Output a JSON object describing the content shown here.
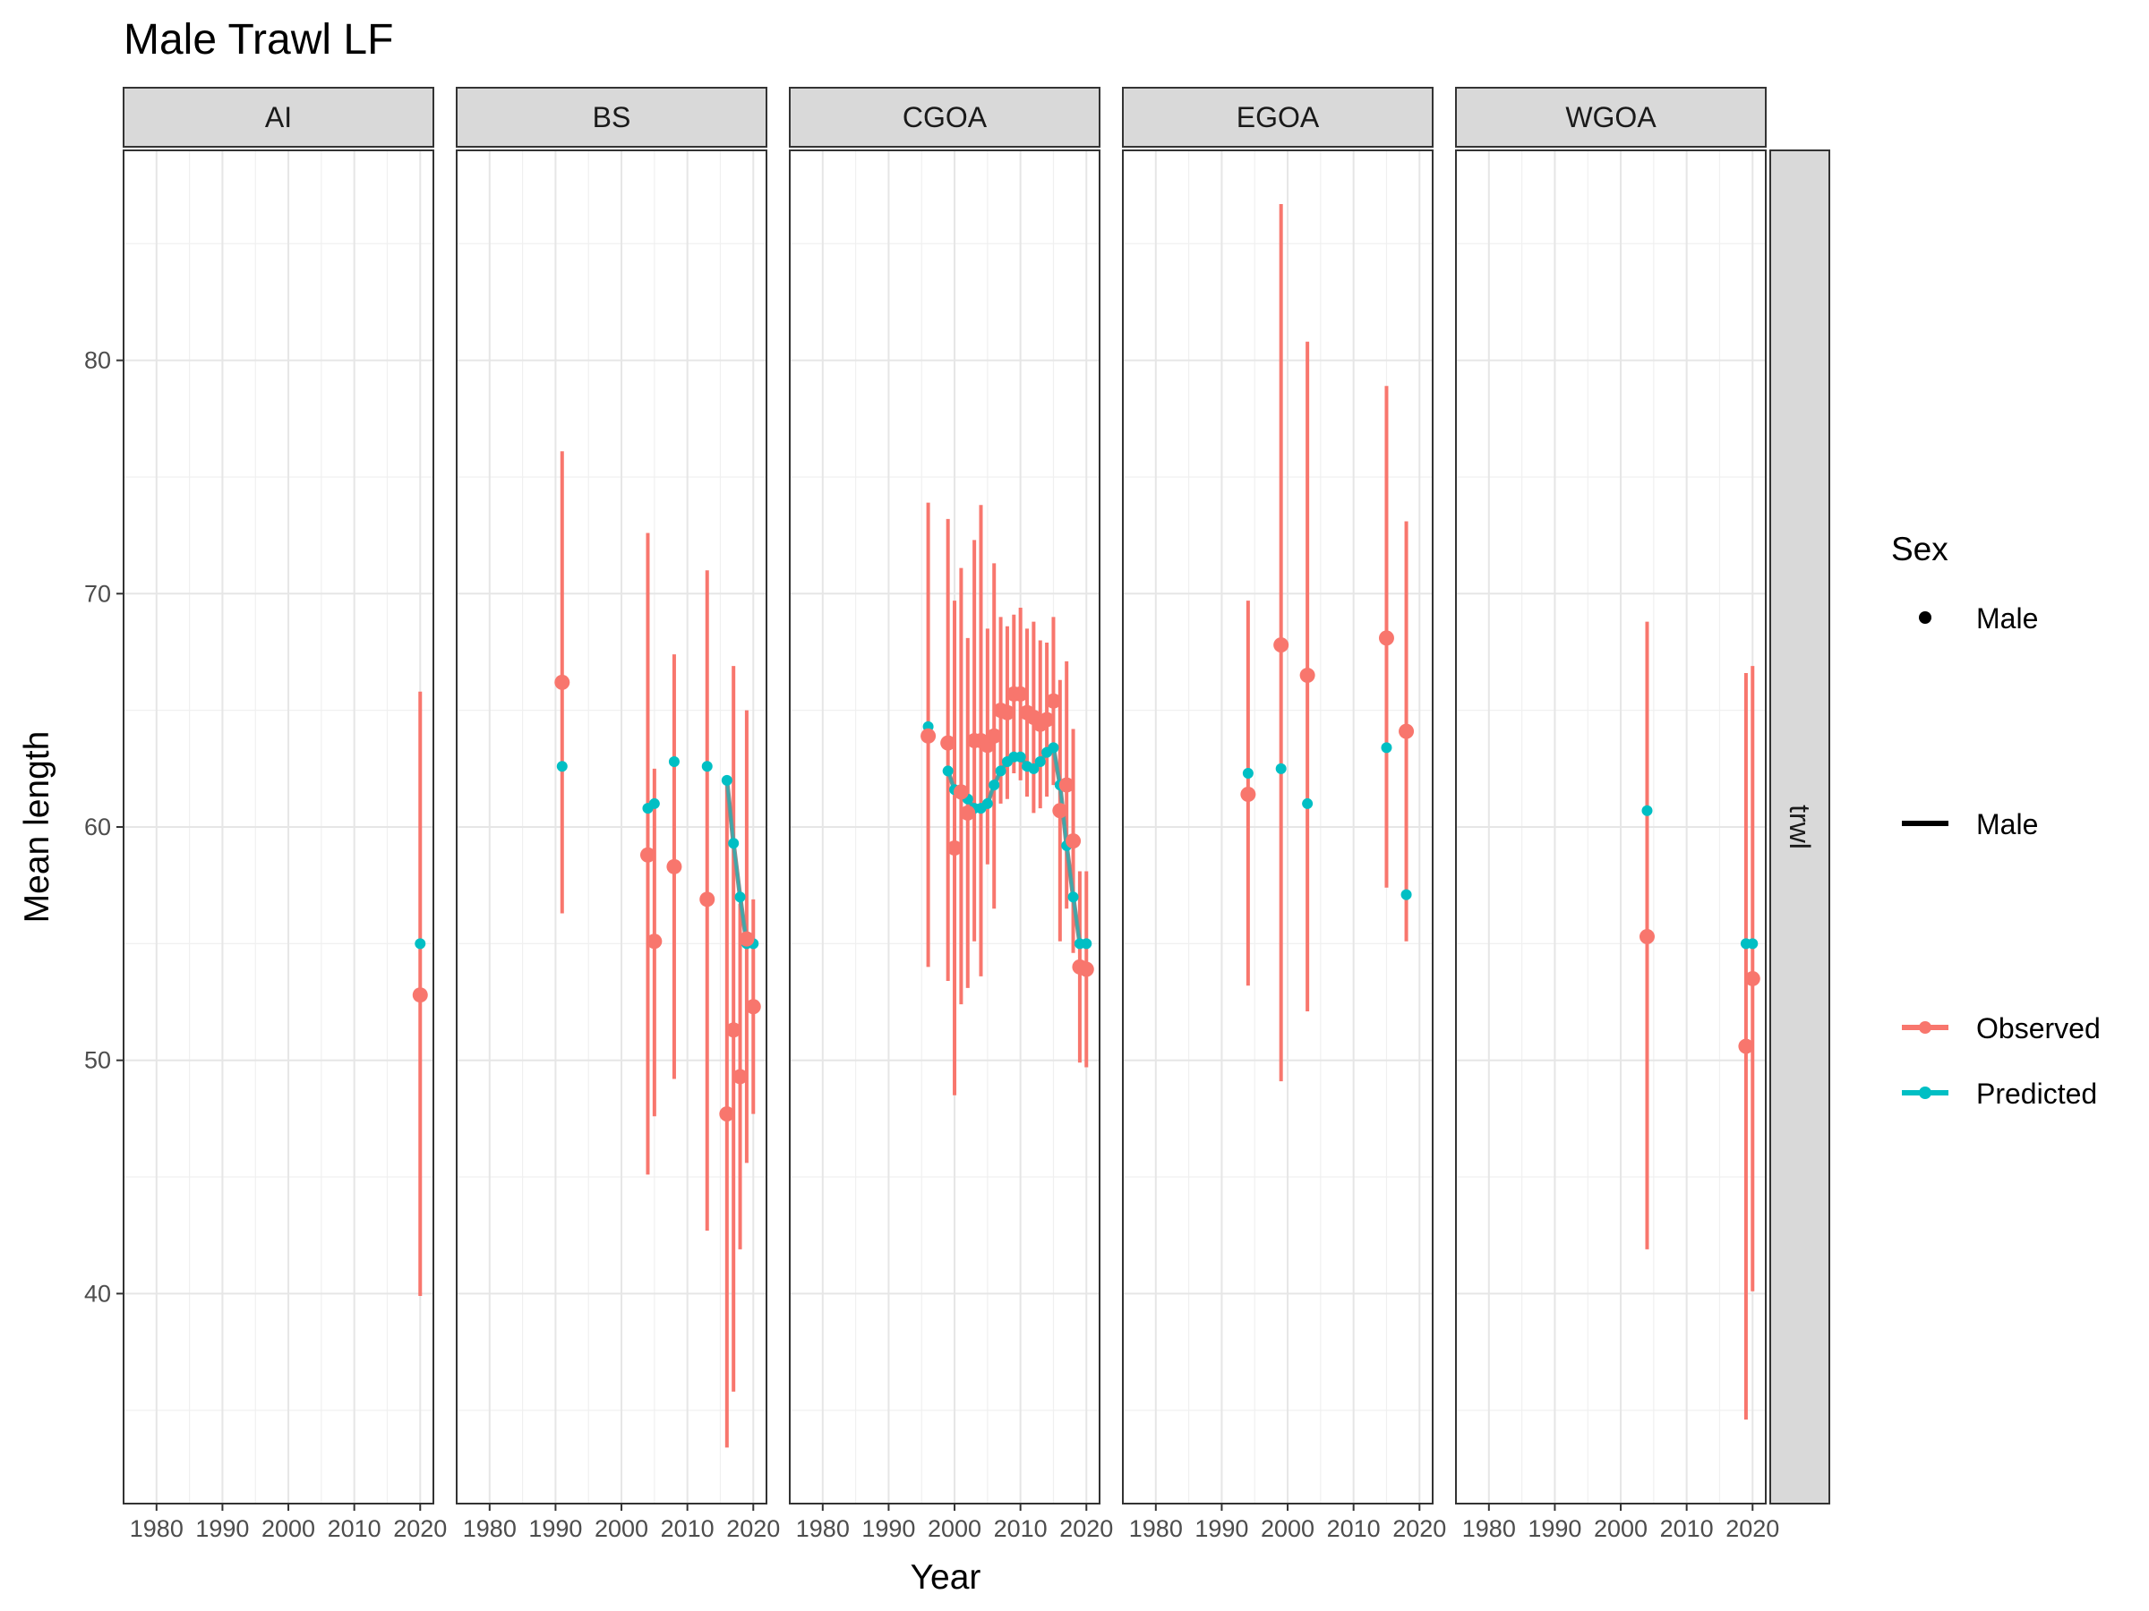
{
  "chart_data": {
    "type": "scatter",
    "title": "Male Trawl LF",
    "xlabel": "Year",
    "ylabel": "Mean length",
    "xlim": [
      1975,
      2022
    ],
    "ylim": [
      31,
      89
    ],
    "x_ticks": [
      1980,
      1990,
      2000,
      2010,
      2020
    ],
    "y_ticks": [
      40,
      50,
      60,
      70,
      80
    ],
    "grid": true,
    "facets": [
      "AI",
      "BS",
      "CGOA",
      "EGOA",
      "WGOA"
    ],
    "row_strip": "trwl",
    "legend": {
      "placement": "right",
      "title": "Sex",
      "shape_label": "Male",
      "line_label": "Male",
      "entries": [
        {
          "name": "Observed",
          "color": "#F8766D"
        },
        {
          "name": "Predicted",
          "color": "#00BFC4"
        }
      ]
    },
    "panels": [
      {
        "name": "AI",
        "observed": [
          {
            "x": 2020,
            "y": 52.8,
            "lo": 39.9,
            "hi": 65.8
          }
        ],
        "predicted": [
          {
            "x": 2020,
            "y": 55.0
          }
        ]
      },
      {
        "name": "BS",
        "observed": [
          {
            "x": 1991,
            "y": 66.2,
            "lo": 56.3,
            "hi": 76.1
          },
          {
            "x": 2004,
            "y": 58.8,
            "lo": 45.1,
            "hi": 72.6
          },
          {
            "x": 2005,
            "y": 55.1,
            "lo": 47.6,
            "hi": 62.5
          },
          {
            "x": 2008,
            "y": 58.3,
            "lo": 49.2,
            "hi": 67.4
          },
          {
            "x": 2013,
            "y": 56.9,
            "lo": 42.7,
            "hi": 71.0
          },
          {
            "x": 2016,
            "y": 47.7,
            "lo": 33.4,
            "hi": 62.0
          },
          {
            "x": 2017,
            "y": 51.3,
            "lo": 35.8,
            "hi": 66.9
          },
          {
            "x": 2018,
            "y": 49.3,
            "lo": 41.9,
            "hi": 56.7
          },
          {
            "x": 2019,
            "y": 55.2,
            "lo": 45.6,
            "hi": 65.0
          },
          {
            "x": 2020,
            "y": 52.3,
            "lo": 47.7,
            "hi": 56.9
          }
        ],
        "predicted": [
          {
            "x": 1991,
            "y": 62.6
          },
          {
            "x": 2004,
            "y": 60.8
          },
          {
            "x": 2005,
            "y": 61.0
          },
          {
            "x": 2008,
            "y": 62.8
          },
          {
            "x": 2013,
            "y": 62.6
          },
          {
            "x": 2016,
            "y": 62.0
          },
          {
            "x": 2017,
            "y": 59.3
          },
          {
            "x": 2018,
            "y": 57.0
          },
          {
            "x": 2019,
            "y": 55.0
          },
          {
            "x": 2020,
            "y": 55.0
          }
        ]
      },
      {
        "name": "CGOA",
        "observed": [
          {
            "x": 1996,
            "y": 63.9,
            "lo": 54.0,
            "hi": 73.9
          },
          {
            "x": 1999,
            "y": 63.6,
            "lo": 53.4,
            "hi": 73.2
          },
          {
            "x": 2000,
            "y": 59.1,
            "lo": 48.5,
            "hi": 69.7
          },
          {
            "x": 2001,
            "y": 61.5,
            "lo": 52.4,
            "hi": 71.1
          },
          {
            "x": 2002,
            "y": 60.6,
            "lo": 53.1,
            "hi": 68.1
          },
          {
            "x": 2003,
            "y": 63.7,
            "lo": 55.1,
            "hi": 72.3
          },
          {
            "x": 2004,
            "y": 63.7,
            "lo": 53.6,
            "hi": 73.8
          },
          {
            "x": 2005,
            "y": 63.5,
            "lo": 58.4,
            "hi": 68.5
          },
          {
            "x": 2006,
            "y": 63.9,
            "lo": 56.5,
            "hi": 71.3
          },
          {
            "x": 2007,
            "y": 65.0,
            "lo": 61.0,
            "hi": 69.0
          },
          {
            "x": 2008,
            "y": 64.9,
            "lo": 61.2,
            "hi": 68.6
          },
          {
            "x": 2009,
            "y": 65.7,
            "lo": 62.3,
            "hi": 69.1
          },
          {
            "x": 2010,
            "y": 65.7,
            "lo": 62.0,
            "hi": 69.4
          },
          {
            "x": 2011,
            "y": 64.9,
            "lo": 61.3,
            "hi": 68.5
          },
          {
            "x": 2012,
            "y": 64.7,
            "lo": 60.6,
            "hi": 68.8
          },
          {
            "x": 2013,
            "y": 64.4,
            "lo": 60.8,
            "hi": 68.0
          },
          {
            "x": 2014,
            "y": 64.6,
            "lo": 61.3,
            "hi": 67.9
          },
          {
            "x": 2015,
            "y": 65.4,
            "lo": 61.8,
            "hi": 69.0
          },
          {
            "x": 2016,
            "y": 60.7,
            "lo": 55.1,
            "hi": 66.3
          },
          {
            "x": 2017,
            "y": 61.8,
            "lo": 56.5,
            "hi": 67.1
          },
          {
            "x": 2018,
            "y": 59.4,
            "lo": 54.6,
            "hi": 64.2
          },
          {
            "x": 2019,
            "y": 54.0,
            "lo": 49.9,
            "hi": 58.1
          },
          {
            "x": 2020,
            "y": 53.9,
            "lo": 49.7,
            "hi": 58.1
          }
        ],
        "predicted": [
          {
            "x": 1996,
            "y": 64.3
          },
          {
            "x": 1999,
            "y": 62.4
          },
          {
            "x": 2000,
            "y": 61.6
          },
          {
            "x": 2001,
            "y": 61.5
          },
          {
            "x": 2002,
            "y": 61.2
          },
          {
            "x": 2003,
            "y": 60.8
          },
          {
            "x": 2004,
            "y": 60.8
          },
          {
            "x": 2005,
            "y": 61.0
          },
          {
            "x": 2006,
            "y": 61.8
          },
          {
            "x": 2007,
            "y": 62.4
          },
          {
            "x": 2008,
            "y": 62.8
          },
          {
            "x": 2009,
            "y": 63.0
          },
          {
            "x": 2010,
            "y": 63.0
          },
          {
            "x": 2011,
            "y": 62.6
          },
          {
            "x": 2012,
            "y": 62.5
          },
          {
            "x": 2013,
            "y": 62.8
          },
          {
            "x": 2014,
            "y": 63.2
          },
          {
            "x": 2015,
            "y": 63.4
          },
          {
            "x": 2016,
            "y": 61.8
          },
          {
            "x": 2017,
            "y": 59.2
          },
          {
            "x": 2018,
            "y": 57.0
          },
          {
            "x": 2019,
            "y": 55.0
          },
          {
            "x": 2020,
            "y": 55.0
          }
        ]
      },
      {
        "name": "EGOA",
        "observed": [
          {
            "x": 1994,
            "y": 61.4,
            "lo": 53.2,
            "hi": 69.7
          },
          {
            "x": 1999,
            "y": 67.8,
            "lo": 49.1,
            "hi": 86.7
          },
          {
            "x": 2003,
            "y": 66.5,
            "lo": 52.1,
            "hi": 80.8
          },
          {
            "x": 2015,
            "y": 68.1,
            "lo": 57.4,
            "hi": 78.9
          },
          {
            "x": 2018,
            "y": 64.1,
            "lo": 55.1,
            "hi": 73.1
          }
        ],
        "predicted": [
          {
            "x": 1994,
            "y": 62.3
          },
          {
            "x": 1999,
            "y": 62.5
          },
          {
            "x": 2003,
            "y": 61.0
          },
          {
            "x": 2015,
            "y": 63.4
          },
          {
            "x": 2018,
            "y": 57.1
          }
        ]
      },
      {
        "name": "WGOA",
        "observed": [
          {
            "x": 2004,
            "y": 55.3,
            "lo": 41.9,
            "hi": 68.8
          },
          {
            "x": 2019,
            "y": 50.6,
            "lo": 34.6,
            "hi": 66.6
          },
          {
            "x": 2020,
            "y": 53.5,
            "lo": 40.1,
            "hi": 66.9
          }
        ],
        "predicted": [
          {
            "x": 2004,
            "y": 60.7
          },
          {
            "x": 2019,
            "y": 55.0
          },
          {
            "x": 2020,
            "y": 55.0
          }
        ]
      }
    ]
  }
}
